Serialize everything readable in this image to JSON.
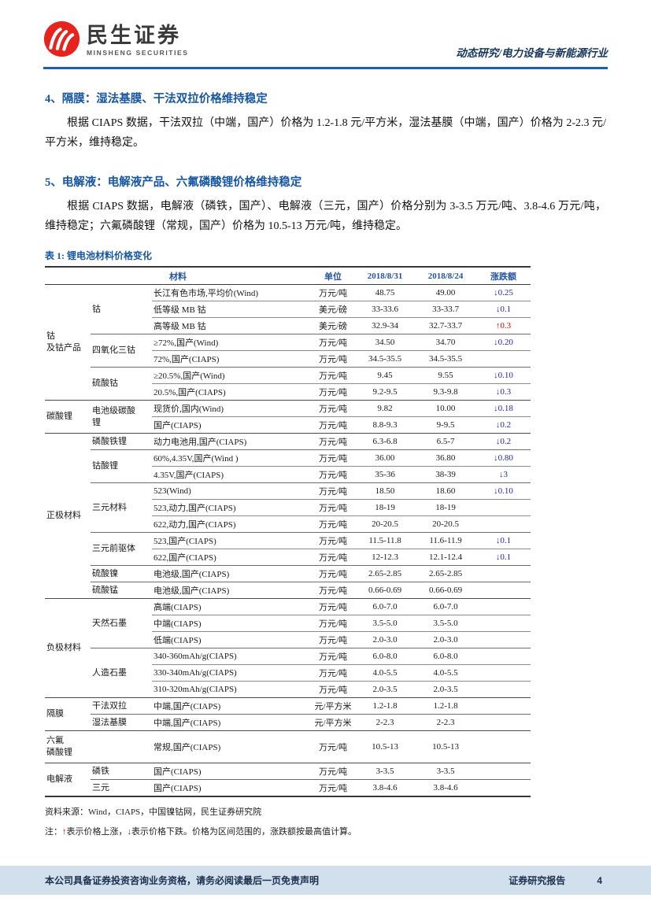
{
  "header": {
    "brand_cn": "民生证券",
    "brand_en": "MINSHENG SECURITIES",
    "doc_type": "动态研究/电力设备与新能源行业"
  },
  "sections": [
    {
      "heading": "4、隔膜：湿法基膜、干法双拉价格维持稳定",
      "body": "根据 CIAPS 数据，干法双拉（中端，国产）价格为 1.2-1.8 元/平方米，湿法基膜（中端，国产）价格为 2-2.3 元/平方米，维持稳定。"
    },
    {
      "heading": "5、电解液：电解液产品、六氟磷酸锂价格维持稳定",
      "body": "根据 CIAPS 数据，电解液（磷铁，国产）、电解液（三元，国产）价格分别为 3-3.5 万元/吨、3.8-4.6 万元/吨，维持稳定；六氟磷酸锂（常规，国产）价格为 10.5-13 万元/吨，维持稳定。"
    }
  ],
  "table": {
    "title": "表 1: 锂电池材料价格变化",
    "columns": {
      "material": "材料",
      "unit": "单位",
      "date1": "2018/8/31",
      "date2": "2018/8/24",
      "change": "涨跌额"
    },
    "arrows": {
      "up": "↑",
      "down": "↓"
    },
    "groups": [
      {
        "label": "钴\n及钴产品",
        "subs": [
          {
            "label": "钴",
            "rows": [
              {
                "m": "长江有色市场,平均价(Wind)",
                "u": "万元/吨",
                "p1": "48.75",
                "p2": "49.00",
                "chg": {
                  "dir": "down",
                  "val": "0.25"
                }
              },
              {
                "m": "低等级 MB 钴",
                "u": "美元/磅",
                "p1": "33-33.6",
                "p2": "33-33.7",
                "chg": {
                  "dir": "down",
                  "val": "0.1"
                }
              },
              {
                "m": "高等级 MB 钴",
                "u": "美元/磅",
                "p1": "32.9-34",
                "p2": "32.7-33.7",
                "chg": {
                  "dir": "up",
                  "val": "0.3"
                }
              }
            ]
          },
          {
            "label": "四氧化三钴",
            "rows": [
              {
                "m": "≥72%,国产(Wind)",
                "u": "万元/吨",
                "p1": "34.50",
                "p2": "34.70",
                "chg": {
                  "dir": "down",
                  "val": "0.20"
                }
              },
              {
                "m": "72%,国产(CIAPS)",
                "u": "万元/吨",
                "p1": "34.5-35.5",
                "p2": "34.5-35.5",
                "chg": null
              }
            ]
          },
          {
            "label": "硫酸钴",
            "rows": [
              {
                "m": "≥20.5%,国产(Wind)",
                "u": "万元/吨",
                "p1": "9.45",
                "p2": "9.55",
                "chg": {
                  "dir": "down",
                  "val": "0.10"
                }
              },
              {
                "m": "20.5%,国产(CIAPS)",
                "u": "万元/吨",
                "p1": "9.2-9.5",
                "p2": "9.3-9.8",
                "chg": {
                  "dir": "down",
                  "val": "0.3"
                }
              }
            ]
          }
        ]
      },
      {
        "label": "碳酸锂",
        "subs": [
          {
            "label": "电池级碳酸\n锂",
            "rows": [
              {
                "m": "现货价,国内(Wind)",
                "u": "万元/吨",
                "p1": "9.82",
                "p2": "10.00",
                "chg": {
                  "dir": "down",
                  "val": "0.18"
                }
              },
              {
                "m": "国产(CIAPS)",
                "u": "万元/吨",
                "p1": "8.8-9.3",
                "p2": "9-9.5",
                "chg": {
                  "dir": "down",
                  "val": "0.2"
                }
              }
            ]
          }
        ]
      },
      {
        "label": "正极材料",
        "subs": [
          {
            "label": "磷酸铁锂",
            "rows": [
              {
                "m": "动力电池用,国产(CIAPS)",
                "u": "万元/吨",
                "p1": "6.3-6.8",
                "p2": "6.5-7",
                "chg": {
                  "dir": "down",
                  "val": "0.2"
                }
              }
            ]
          },
          {
            "label": "钴酸锂",
            "rows": [
              {
                "m": "60%,4.35V,国产(Wind )",
                "u": "万元/吨",
                "p1": "36.00",
                "p2": "36.80",
                "chg": {
                  "dir": "down",
                  "val": "0.80"
                }
              },
              {
                "m": "4.35V,国产(CIAPS)",
                "u": "万元/吨",
                "p1": "35-36",
                "p2": "38-39",
                "chg": {
                  "dir": "down",
                  "val": "3"
                }
              }
            ]
          },
          {
            "label": "三元材料",
            "rows": [
              {
                "m": "523(Wind)",
                "u": "万元/吨",
                "p1": "18.50",
                "p2": "18.60",
                "chg": {
                  "dir": "down",
                  "val": "0.10"
                }
              },
              {
                "m": "523,动力,国产(CIAPS)",
                "u": "万元/吨",
                "p1": "18-19",
                "p2": "18-19",
                "chg": null
              },
              {
                "m": "622,动力,国产(CIAPS)",
                "u": "万元/吨",
                "p1": "20-20.5",
                "p2": "20-20.5",
                "chg": null
              }
            ]
          },
          {
            "label": "三元前驱体",
            "rows": [
              {
                "m": "523,国产(CIAPS)",
                "u": "万元/吨",
                "p1": "11.5-11.8",
                "p2": "11.6-11.9",
                "chg": {
                  "dir": "down",
                  "val": "0.1"
                }
              },
              {
                "m": "622,国产(CIAPS)",
                "u": "万元/吨",
                "p1": "12-12.3",
                "p2": "12.1-12.4",
                "chg": {
                  "dir": "down",
                  "val": "0.1"
                }
              }
            ]
          },
          {
            "label": "硫酸镍",
            "rows": [
              {
                "m": "电池级,国产(CIAPS)",
                "u": "万元/吨",
                "p1": "2.65-2.85",
                "p2": "2.65-2.85",
                "chg": null
              }
            ]
          },
          {
            "label": "硫酸锰",
            "rows": [
              {
                "m": "电池级,国产(CIAPS)",
                "u": "万元/吨",
                "p1": "0.66-0.69",
                "p2": "0.66-0.69",
                "chg": null
              }
            ]
          }
        ]
      },
      {
        "label": "负极材料",
        "subs": [
          {
            "label": "天然石墨",
            "rows": [
              {
                "m": "高端(CIAPS)",
                "u": "万元/吨",
                "p1": "6.0-7.0",
                "p2": "6.0-7.0",
                "chg": null
              },
              {
                "m": "中端(CIAPS)",
                "u": "万元/吨",
                "p1": "3.5-5.0",
                "p2": "3.5-5.0",
                "chg": null
              },
              {
                "m": "低端(CIAPS)",
                "u": "万元/吨",
                "p1": "2.0-3.0",
                "p2": "2.0-3.0",
                "chg": null
              }
            ]
          },
          {
            "label": "人造石墨",
            "rows": [
              {
                "m": "340-360mAh/g(CIAPS)",
                "u": "万元/吨",
                "p1": "6.0-8.0",
                "p2": "6.0-8.0",
                "chg": null
              },
              {
                "m": "330-340mAh/g(CIAPS)",
                "u": "万元/吨",
                "p1": "4.0-5.5",
                "p2": "4.0-5.5",
                "chg": null
              },
              {
                "m": "310-320mAh/g(CIAPS)",
                "u": "万元/吨",
                "p1": "2.0-3.5",
                "p2": "2.0-3.5",
                "chg": null
              }
            ]
          }
        ]
      },
      {
        "label": "隔膜",
        "subs": [
          {
            "label": "干法双拉",
            "rows": [
              {
                "m": "中端,国产(CIAPS)",
                "u": "元/平方米",
                "p1": "1.2-1.8",
                "p2": "1.2-1.8",
                "chg": null
              }
            ]
          },
          {
            "label": "湿法基膜",
            "rows": [
              {
                "m": "中端,国产(CIAPS)",
                "u": "元/平方米",
                "p1": "2-2.3",
                "p2": "2-2.3",
                "chg": null
              }
            ]
          }
        ]
      },
      {
        "label": "六氟\n磷酸锂",
        "subs": [
          {
            "label": "",
            "rows": [
              {
                "m": "常规,国产(CIAPS)",
                "u": "万元/吨",
                "p1": "10.5-13",
                "p2": "10.5-13",
                "chg": null,
                "tall": true
              }
            ]
          }
        ]
      },
      {
        "label": "电解液",
        "subs": [
          {
            "label": "磷铁",
            "rows": [
              {
                "m": "国产(CIAPS)",
                "u": "万元/吨",
                "p1": "3-3.5",
                "p2": "3-3.5",
                "chg": null
              }
            ]
          },
          {
            "label": "三元",
            "rows": [
              {
                "m": "国产(CIAPS)",
                "u": "万元/吨",
                "p1": "3.8-4.6",
                "p2": "3.8-4.6",
                "chg": null
              }
            ]
          }
        ]
      }
    ],
    "source": "资料来源：Wind，CIAPS，中国镍钴网，民生证券研究院",
    "note": {
      "prefix": "注：",
      "up_arrow": "↑",
      "up_text": "表示价格上涨，",
      "down_arrow": "↓",
      "down_text": "表示价格下跌。价格为区间范围的，涨跌额按最高值计算。"
    }
  },
  "footer": {
    "disclaimer": "本公司具备证券投资咨询业务资格，请务必阅读最后一页免责声明",
    "report_type": "证券研究报告",
    "page": "4"
  },
  "colors": {
    "heading_blue": "#1656a3",
    "table_header_blue": "#2452a0",
    "up_red": "#d40000",
    "down_blue": "#2222cc",
    "header_rule_blue": "#1f5fa8",
    "footer_bar": "#d2dfec",
    "logo_red": "#e8221c"
  }
}
